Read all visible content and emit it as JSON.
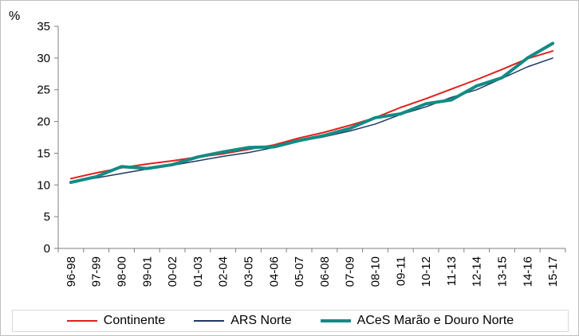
{
  "chart_data": {
    "type": "line",
    "ylabel": "%",
    "ylim": [
      0,
      35
    ],
    "yticks": [
      0,
      5,
      10,
      15,
      20,
      25,
      30,
      35
    ],
    "grid": false,
    "legend_position": "bottom",
    "categories": [
      "96-98",
      "97-99",
      "98-00",
      "99-01",
      "00-02",
      "01-03",
      "02-04",
      "03-05",
      "04-06",
      "05-07",
      "06-08",
      "07-09",
      "08-10",
      "09-11",
      "10-12",
      "11-13",
      "12-14",
      "13-15",
      "14-16",
      "15-17"
    ],
    "series": [
      {
        "name": "Continente",
        "color": "#e0201c",
        "width": 2,
        "values": [
          11.0,
          11.9,
          12.7,
          13.3,
          13.8,
          14.4,
          14.9,
          15.6,
          16.3,
          17.4,
          18.3,
          19.4,
          20.6,
          22.2,
          23.6,
          25.1,
          26.6,
          28.2,
          29.9,
          31.1
        ]
      },
      {
        "name": "ARS Norte",
        "color": "#1f3864",
        "width": 1.5,
        "values": [
          10.5,
          11.1,
          11.8,
          12.5,
          13.1,
          13.8,
          14.5,
          15.1,
          15.9,
          16.9,
          17.6,
          18.5,
          19.6,
          21.1,
          22.3,
          23.8,
          25.0,
          26.8,
          28.6,
          30.0
        ]
      },
      {
        "name": "ACeS Marão e Douro Norte",
        "color": "#138b84",
        "width": 4,
        "values": [
          10.4,
          11.3,
          12.9,
          12.6,
          13.2,
          14.4,
          15.2,
          15.9,
          16.0,
          17.0,
          17.8,
          18.9,
          20.6,
          21.2,
          22.8,
          23.4,
          25.6,
          26.9,
          30.0,
          32.3
        ]
      }
    ]
  }
}
